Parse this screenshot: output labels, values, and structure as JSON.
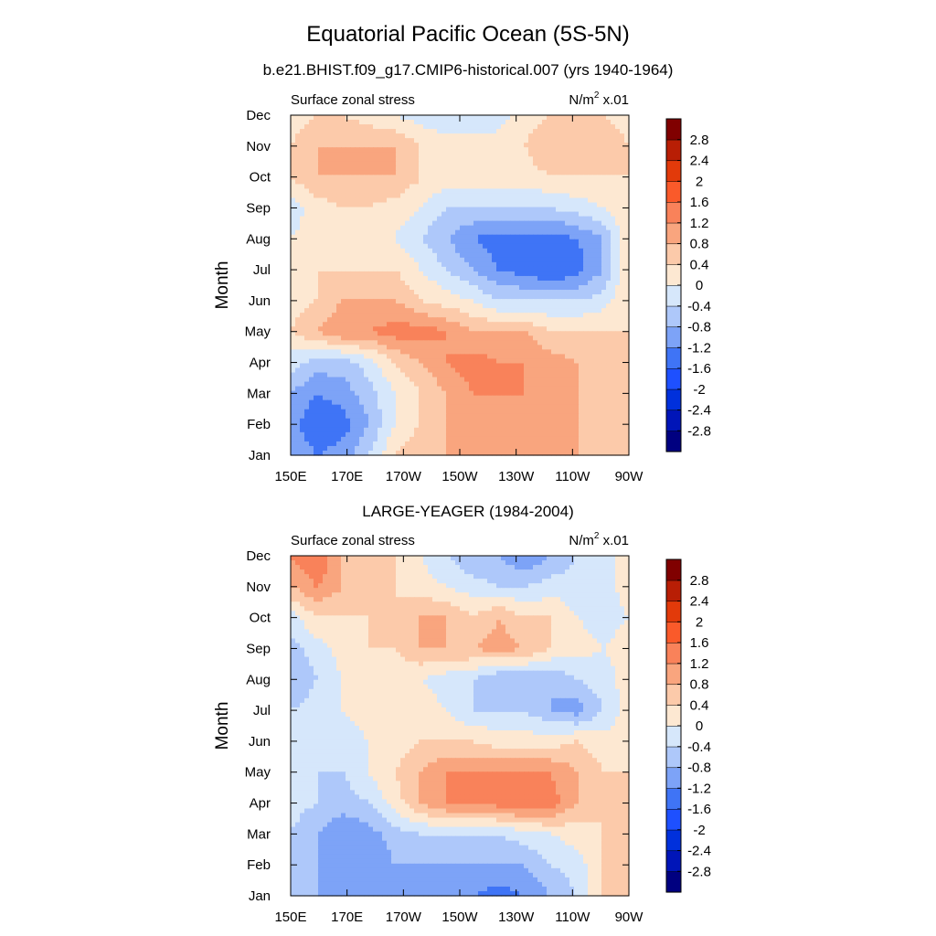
{
  "figure": {
    "title": "Equatorial Pacific Ocean (5S-5N)"
  },
  "chart_data": [
    {
      "type": "heatmap",
      "panel_title": "b.e21.BHIST.f09_g17.CMIP6-historical.007 (yrs 1940-1964)",
      "left_label": "Surface zonal stress",
      "units_base": "N/m",
      "units_sup": "2",
      "units_suffix": " x.01",
      "ylabel": "Month",
      "x_ticks": [
        "150E",
        "170E",
        "170W",
        "150W",
        "130W",
        "110W",
        "90W"
      ],
      "y_ticks": [
        "Jan",
        "Feb",
        "Mar",
        "Apr",
        "May",
        "Jun",
        "Jul",
        "Aug",
        "Sep",
        "Oct",
        "Nov",
        "Dec"
      ],
      "xlim": [
        "150E",
        "90W"
      ],
      "ylim": [
        "Jan",
        "Dec"
      ],
      "values": [
        [
          -0.8,
          -1.2,
          -1.0,
          -0.4,
          0.4,
          0.8,
          0.8,
          0.8,
          0.8,
          0.8,
          0.8,
          0.8,
          0.4,
          0.4
        ],
        [
          -1.0,
          -1.6,
          -1.4,
          -0.8,
          0.0,
          0.4,
          0.8,
          0.8,
          0.8,
          0.8,
          0.8,
          0.8,
          0.4,
          0.4
        ],
        [
          -0.8,
          -1.2,
          -1.0,
          -0.6,
          0.0,
          0.4,
          0.8,
          1.2,
          1.2,
          1.2,
          1.0,
          0.8,
          0.4,
          0.4
        ],
        [
          -0.2,
          -0.6,
          -0.6,
          -0.2,
          0.4,
          0.8,
          1.2,
          1.4,
          1.2,
          1.2,
          1.0,
          0.8,
          0.4,
          0.4
        ],
        [
          0.4,
          0.8,
          1.2,
          1.2,
          1.4,
          1.4,
          1.2,
          0.8,
          0.8,
          0.8,
          0.4,
          0.4,
          0.4,
          0.4
        ],
        [
          0.2,
          0.4,
          0.8,
          0.8,
          0.8,
          0.4,
          0.2,
          0.0,
          -0.4,
          -0.4,
          -0.4,
          -0.4,
          -0.2,
          0.4
        ],
        [
          0.2,
          0.4,
          0.4,
          0.4,
          0.4,
          0.0,
          -0.4,
          -0.8,
          -1.2,
          -1.4,
          -1.6,
          -1.4,
          -0.8,
          0.4
        ],
        [
          0.0,
          0.2,
          0.4,
          0.2,
          0.0,
          -0.4,
          -0.8,
          -1.2,
          -1.4,
          -1.4,
          -1.4,
          -1.2,
          -0.8,
          0.4
        ],
        [
          -0.2,
          0.2,
          0.4,
          0.4,
          0.2,
          0.0,
          -0.4,
          -0.4,
          -0.4,
          -0.4,
          -0.4,
          -0.2,
          0.0,
          0.4
        ],
        [
          0.4,
          0.8,
          0.8,
          0.8,
          0.8,
          0.4,
          0.2,
          0.2,
          0.2,
          0.2,
          0.4,
          0.4,
          0.4,
          0.4
        ],
        [
          0.4,
          0.8,
          0.8,
          0.8,
          0.8,
          0.4,
          0.2,
          0.2,
          0.2,
          0.4,
          0.8,
          0.8,
          0.8,
          0.4
        ],
        [
          0.2,
          0.4,
          0.4,
          0.2,
          0.0,
          -0.2,
          -0.4,
          -0.4,
          -0.2,
          0.2,
          0.4,
          0.8,
          0.4,
          0.2
        ]
      ]
    },
    {
      "type": "heatmap",
      "panel_title": "LARGE-YEAGER (1984-2004)",
      "left_label": "Surface zonal stress",
      "units_base": "N/m",
      "units_sup": "2",
      "units_suffix": " x.01",
      "ylabel": "Month",
      "x_ticks": [
        "150E",
        "170E",
        "170W",
        "150W",
        "130W",
        "110W",
        "90W"
      ],
      "y_ticks": [
        "Jan",
        "Feb",
        "Mar",
        "Apr",
        "May",
        "Jun",
        "Jul",
        "Aug",
        "Sep",
        "Oct",
        "Nov",
        "Dec"
      ],
      "xlim": [
        "150E",
        "90W"
      ],
      "ylim": [
        "Jan",
        "Dec"
      ],
      "values": [
        [
          -0.4,
          -0.8,
          -0.8,
          -0.8,
          -0.8,
          -1.2,
          -1.2,
          -1.2,
          -1.4,
          -1.2,
          -0.8,
          -0.4,
          0.4,
          0.4
        ],
        [
          -0.4,
          -0.8,
          -1.2,
          -1.2,
          -0.8,
          -0.8,
          -0.8,
          -0.8,
          -0.8,
          -0.8,
          -0.4,
          -0.2,
          0.4,
          0.4
        ],
        [
          -0.4,
          -0.8,
          -1.2,
          -1.0,
          -0.6,
          -0.4,
          -0.4,
          -0.4,
          -0.4,
          -0.2,
          0.0,
          0.2,
          0.4,
          0.4
        ],
        [
          -0.2,
          -0.4,
          -0.6,
          -0.4,
          0.2,
          0.8,
          1.2,
          1.2,
          1.4,
          1.6,
          1.4,
          0.8,
          0.4,
          0.4
        ],
        [
          -0.2,
          -0.4,
          -0.4,
          0.0,
          0.4,
          0.8,
          1.2,
          1.2,
          1.2,
          1.2,
          1.2,
          0.8,
          0.4,
          0.4
        ],
        [
          -0.2,
          -0.4,
          -0.2,
          0.0,
          0.2,
          0.4,
          0.4,
          0.4,
          0.2,
          0.2,
          0.2,
          0.4,
          0.2,
          0.2
        ],
        [
          -0.4,
          -0.2,
          0.0,
          0.2,
          0.2,
          0.2,
          0.0,
          -0.4,
          -0.4,
          -0.4,
          -0.8,
          -1.0,
          -0.4,
          0.2
        ],
        [
          -0.8,
          -0.4,
          0.0,
          0.2,
          0.2,
          0.0,
          -0.2,
          -0.4,
          -0.8,
          -0.8,
          -0.8,
          -0.4,
          -0.2,
          0.2
        ],
        [
          -0.6,
          -0.2,
          0.2,
          0.4,
          0.4,
          0.8,
          0.8,
          0.8,
          1.0,
          0.8,
          0.4,
          0.2,
          0.0,
          0.2
        ],
        [
          -0.2,
          0.4,
          0.4,
          0.4,
          0.4,
          0.8,
          0.8,
          0.4,
          0.8,
          0.4,
          0.4,
          0.0,
          -0.2,
          0.0
        ],
        [
          0.8,
          1.2,
          0.8,
          0.4,
          0.4,
          0.2,
          0.0,
          -0.2,
          -0.4,
          -0.4,
          -0.2,
          -0.2,
          -0.2,
          0.2
        ],
        [
          1.2,
          1.6,
          0.8,
          0.4,
          0.4,
          0.0,
          -0.4,
          -0.8,
          -0.8,
          -1.2,
          -0.8,
          -0.4,
          -0.2,
          0.2
        ]
      ]
    }
  ],
  "colorbar": {
    "labels": [
      "2.8",
      "2.4",
      "2",
      "1.6",
      "1.2",
      "0.8",
      "0.4",
      "0",
      "-0.4",
      "-0.8",
      "-1.2",
      "-1.6",
      "-2",
      "-2.4",
      "-2.8"
    ],
    "levels": [
      -3.2,
      -2.8,
      -2.4,
      -2.0,
      -1.6,
      -1.2,
      -0.8,
      -0.4,
      0,
      0.4,
      0.8,
      1.2,
      1.6,
      2.0,
      2.4,
      2.8,
      3.2
    ],
    "colors": [
      "#000080",
      "#0015b8",
      "#0030dc",
      "#1e50ff",
      "#3f74f6",
      "#7da3f7",
      "#aec8fa",
      "#d6e7fb",
      "#fde8d2",
      "#fccaaa",
      "#f9a57e",
      "#f9825a",
      "#fa5a2a",
      "#e23a0a",
      "#b81e05",
      "#800000"
    ]
  }
}
